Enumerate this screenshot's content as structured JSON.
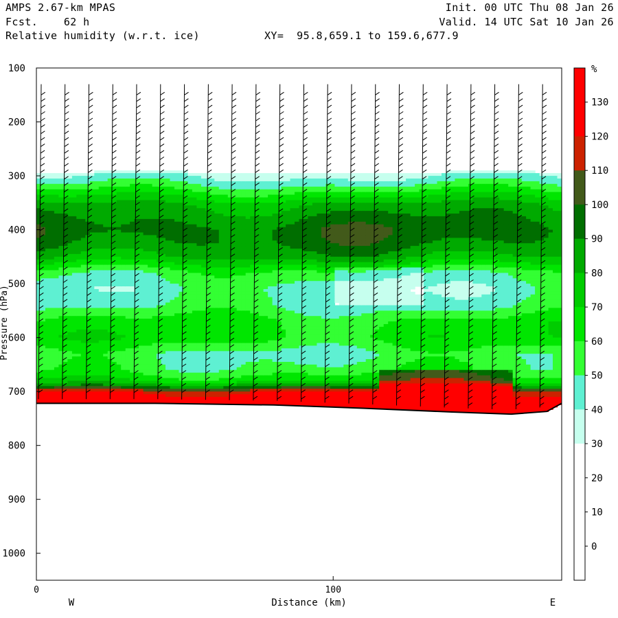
{
  "header": {
    "model": "AMPS 2.67-km MPAS",
    "fcst": "Fcst.    62 h",
    "field": "Relative humidity (w.r.t. ice)",
    "xy": "XY=  95.8,659.1 to 159.6,677.9",
    "init": "Init. 00 UTC Thu 08 Jan 26",
    "valid": "Valid. 14 UTC Sat 10 Jan 26"
  },
  "chart_data": {
    "type": "heatmap",
    "title": "Relative humidity (w.r.t. ice)",
    "xlabel": "Distance (km)",
    "ylabel": "Pressure (hPa)",
    "x_range": [
      0,
      177
    ],
    "y_range": [
      100,
      1050
    ],
    "y_axis_inverted": true,
    "x_ticks": [
      0,
      100
    ],
    "y_ticks": [
      100,
      200,
      300,
      400,
      500,
      600,
      700,
      800,
      900,
      1000
    ],
    "x_end_labels": {
      "left": "W",
      "right": "E"
    },
    "colorbar": {
      "unit": "%",
      "levels": [
        0,
        10,
        20,
        30,
        40,
        50,
        60,
        70,
        80,
        90,
        100,
        110,
        120,
        130
      ],
      "colors": [
        "#ffffff",
        "#ffffff",
        "#ffffff",
        "#ffffff",
        "#c6ffee",
        "#5ef0d2",
        "#33ff33",
        "#00e600",
        "#00cc00",
        "#00aa00",
        "#006e00",
        "#425a1a",
        "#cc2200",
        "#ff0000",
        "#ff0000"
      ]
    },
    "terrain_surface": {
      "x": [
        0,
        40,
        80,
        110,
        140,
        160,
        172,
        177
      ],
      "p": [
        722,
        722,
        725,
        731,
        738,
        742,
        737,
        722
      ]
    },
    "rh_profile": {
      "p": [
        100,
        285,
        295,
        310,
        330,
        355,
        380,
        400,
        425,
        450,
        480,
        510,
        540,
        570,
        600,
        630,
        660,
        680,
        690,
        700,
        712
      ],
      "rh": [
        0,
        0,
        35,
        45,
        62,
        82,
        90,
        95,
        92,
        82,
        55,
        45,
        48,
        62,
        65,
        50,
        55,
        70,
        90,
        120,
        130
      ]
    },
    "wind_barbs": "black wind barbs on a regular distance-pressure grid (~18 columns)"
  }
}
